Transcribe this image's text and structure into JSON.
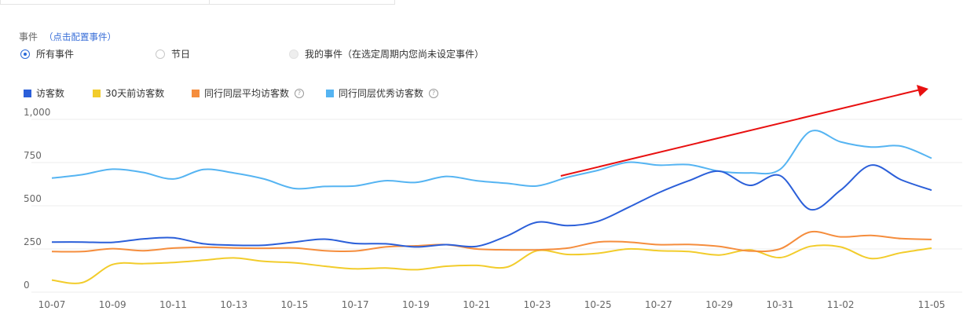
{
  "events": {
    "title": "事件",
    "config_link": "（点击配置事件）",
    "options": [
      {
        "label": "所有事件",
        "state": "checked"
      },
      {
        "label": "节日",
        "state": "unchecked"
      },
      {
        "label": "我的事件（在选定周期内您尚未设定事件）",
        "state": "disabled"
      }
    ]
  },
  "colors": {
    "visitors": "#2b5fd9",
    "visitors_30d": "#f2cc2b",
    "peer_avg": "#f58d3d",
    "peer_excellent": "#55b4f2",
    "arrow": "#e81010",
    "grid": "#ececec"
  },
  "chart_data": {
    "type": "line",
    "ylim": [
      0,
      1000
    ],
    "yticks": [
      "0",
      "250",
      "500",
      "750",
      "1,000"
    ],
    "ytick_values": [
      0,
      250,
      500,
      750,
      1000
    ],
    "xlim": [
      "10-07",
      "11-05"
    ],
    "xticks": [
      "10-07",
      "10-09",
      "10-11",
      "10-13",
      "10-15",
      "10-17",
      "10-19",
      "10-21",
      "10-23",
      "10-25",
      "10-27",
      "10-29",
      "10-31",
      "11-02",
      "11-05"
    ],
    "x": [
      "10-07",
      "10-08",
      "10-09",
      "10-10",
      "10-11",
      "10-12",
      "10-13",
      "10-14",
      "10-15",
      "10-16",
      "10-17",
      "10-18",
      "10-19",
      "10-20",
      "10-21",
      "10-22",
      "10-23",
      "10-24",
      "10-25",
      "10-26",
      "10-27",
      "10-28",
      "10-29",
      "10-30",
      "10-31",
      "11-01",
      "11-02",
      "11-03",
      "11-04",
      "11-05"
    ],
    "grid": true,
    "legend_position": "top-left",
    "series": [
      {
        "name": "访客数",
        "color_key": "visitors",
        "values": [
          290,
          290,
          288,
          308,
          315,
          280,
          272,
          272,
          290,
          307,
          282,
          280,
          262,
          275,
          265,
          325,
          405,
          385,
          410,
          490,
          575,
          645,
          700,
          618,
          675,
          478,
          590,
          735,
          650,
          590
        ]
      },
      {
        "name": "30天前访客数",
        "color_key": "visitors_30d",
        "values": [
          70,
          55,
          160,
          165,
          172,
          185,
          198,
          178,
          170,
          150,
          135,
          140,
          130,
          150,
          155,
          145,
          240,
          218,
          225,
          250,
          240,
          235,
          215,
          245,
          200,
          265,
          262,
          195,
          228,
          255
        ]
      },
      {
        "name": "同行同层平均访客数",
        "color_key": "peer_avg",
        "values": [
          235,
          235,
          252,
          240,
          255,
          260,
          256,
          254,
          256,
          240,
          238,
          262,
          268,
          275,
          250,
          245,
          245,
          255,
          290,
          290,
          275,
          276,
          265,
          238,
          250,
          348,
          320,
          328,
          310,
          305
        ]
      },
      {
        "name": "同行同层优秀访客数",
        "color_key": "peer_excellent",
        "values": [
          660,
          680,
          712,
          693,
          655,
          710,
          690,
          655,
          600,
          612,
          615,
          645,
          635,
          670,
          645,
          630,
          615,
          665,
          705,
          752,
          735,
          738,
          700,
          690,
          710,
          930,
          870,
          840,
          845,
          775
        ]
      }
    ],
    "annotation": {
      "type": "arrow",
      "from": [
        "10-23",
        660
      ],
      "to": [
        "11-05",
        1185
      ]
    }
  }
}
